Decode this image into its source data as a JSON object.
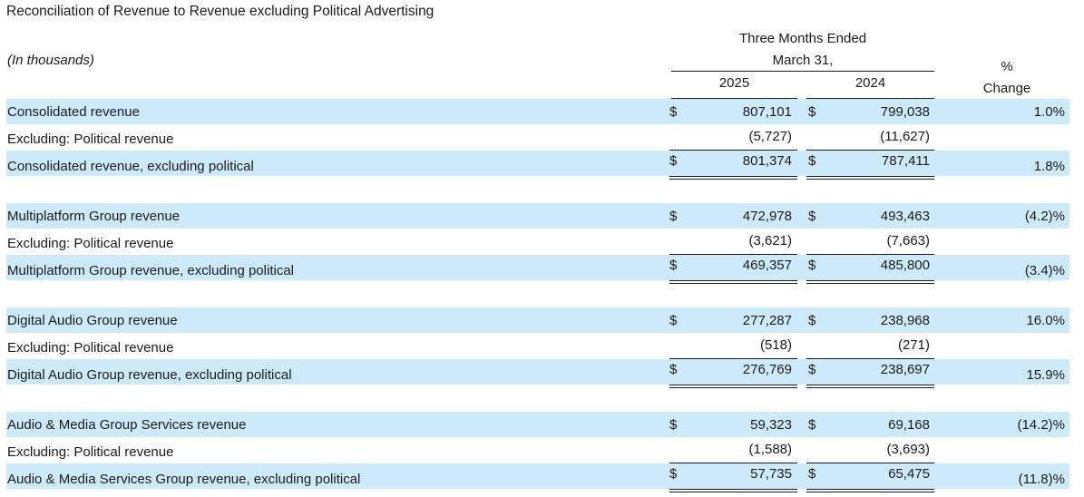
{
  "title": "Reconciliation of Revenue to Revenue excluding Political Advertising",
  "units_note": "(In thousands)",
  "period_header": {
    "line1": "Three Months Ended",
    "line2": "March 31,"
  },
  "years": [
    "2025",
    "2024"
  ],
  "pct_header": {
    "line1": "%",
    "line2": "Change"
  },
  "groups": [
    {
      "rows": [
        {
          "label": "Consolidated revenue",
          "cur25": "$",
          "v25": "807,101",
          "cur24": "$",
          "v24": "799,038",
          "pct": "1.0%"
        },
        {
          "label": "Excluding: Political revenue",
          "cur25": "",
          "v25": "(5,727)",
          "cur24": "",
          "v24": "(11,627)",
          "pct": ""
        },
        {
          "label": "Consolidated revenue, excluding political",
          "cur25": "$",
          "v25": "801,374",
          "cur24": "$",
          "v24": "787,411",
          "pct": "1.8%"
        }
      ]
    },
    {
      "rows": [
        {
          "label": "Multiplatform Group revenue",
          "cur25": "$",
          "v25": "472,978",
          "cur24": "$",
          "v24": "493,463",
          "pct": "(4.2)%"
        },
        {
          "label": "Excluding: Political revenue",
          "cur25": "",
          "v25": "(3,621)",
          "cur24": "",
          "v24": "(7,663)",
          "pct": ""
        },
        {
          "label": "Multiplatform Group revenue, excluding political",
          "cur25": "$",
          "v25": "469,357",
          "cur24": "$",
          "v24": "485,800",
          "pct": "(3.4)%"
        }
      ]
    },
    {
      "rows": [
        {
          "label": "Digital Audio Group revenue",
          "cur25": "$",
          "v25": "277,287",
          "cur24": "$",
          "v24": "238,968",
          "pct": "16.0%"
        },
        {
          "label": "Excluding: Political revenue",
          "cur25": "",
          "v25": "(518)",
          "cur24": "",
          "v24": "(271)",
          "pct": ""
        },
        {
          "label": "Digital Audio Group revenue, excluding political",
          "cur25": "$",
          "v25": "276,769",
          "cur24": "$",
          "v24": "238,697",
          "pct": "15.9%"
        }
      ]
    },
    {
      "rows": [
        {
          "label": "Audio & Media Group Services revenue",
          "cur25": "$",
          "v25": "59,323",
          "cur24": "$",
          "v24": "69,168",
          "pct": "(14.2)%"
        },
        {
          "label": "Excluding: Political revenue",
          "cur25": "",
          "v25": "(1,588)",
          "cur24": "",
          "v24": "(3,693)",
          "pct": ""
        },
        {
          "label": "Audio & Media Services Group revenue, excluding political",
          "cur25": "$",
          "v25": "57,735",
          "cur24": "$",
          "v24": "65,475",
          "pct": "(11.8)%"
        }
      ]
    }
  ],
  "colors": {
    "shade": "#cdeafb",
    "text": "#1a1a1a",
    "rule": "#1a1a1a"
  }
}
